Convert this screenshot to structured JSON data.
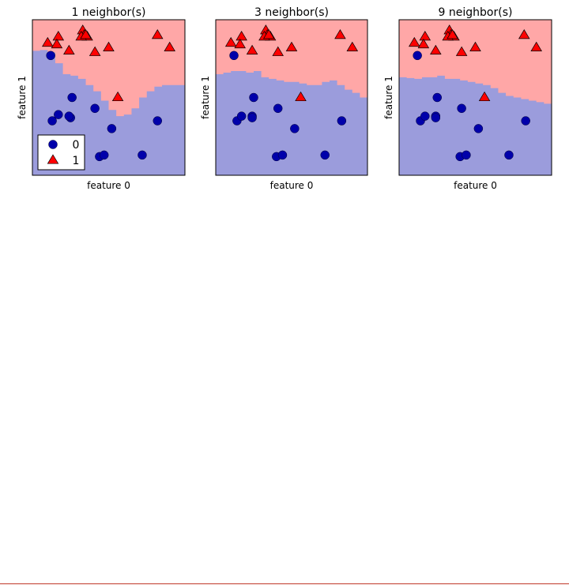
{
  "chart_data": [
    {
      "type": "scatter",
      "title": "1 neighbor(s)",
      "xlabel": "feature 0",
      "ylabel": "feature 1",
      "xlim": [
        0,
        100
      ],
      "ylim": [
        0,
        100
      ],
      "xticks": [],
      "yticks": [],
      "boundary": {
        "x": [
          0,
          5,
          10,
          15,
          20,
          25,
          30,
          35,
          40,
          45,
          50,
          55,
          60,
          65,
          70,
          75,
          80,
          85,
          90,
          95,
          100
        ],
        "y": [
          80,
          80.5,
          79,
          72,
          65,
          64,
          62,
          58,
          54,
          48,
          42,
          38,
          39,
          43,
          50,
          54,
          57,
          58,
          58,
          58,
          58
        ],
        "below_color": "#9b9cdc",
        "above_color": "#ffa7a7"
      },
      "series": [
        {
          "name": "0",
          "marker": "circle",
          "color": "#0000aa",
          "x": [
            12,
            26,
            25,
            13,
            17,
            24,
            41,
            52,
            44,
            47,
            82,
            72
          ],
          "y": [
            77,
            50,
            37,
            35,
            39,
            38,
            43,
            30,
            12,
            13,
            35,
            13
          ]
        },
        {
          "name": "1",
          "marker": "triangle",
          "color": "#ff0000",
          "x": [
            10,
            17,
            16,
            33,
            34,
            36,
            32,
            35,
            24,
            41,
            50,
            82,
            90,
            56
          ],
          "y": [
            85,
            89,
            84,
            93,
            90,
            89,
            89,
            90,
            80,
            79,
            82,
            90,
            82,
            50
          ]
        }
      ],
      "legend": {
        "position": "bottom-left",
        "entries": [
          "0",
          "1"
        ]
      }
    },
    {
      "type": "scatter",
      "title": "3 neighbor(s)",
      "xlabel": "feature 0",
      "ylabel": "feature 1",
      "xlim": [
        0,
        100
      ],
      "ylim": [
        0,
        100
      ],
      "xticks": [],
      "yticks": [],
      "boundary": {
        "x": [
          0,
          5,
          10,
          15,
          20,
          25,
          30,
          35,
          40,
          45,
          50,
          55,
          60,
          65,
          70,
          75,
          80,
          85,
          90,
          95,
          100
        ],
        "y": [
          65,
          66,
          67,
          67,
          66,
          67,
          63,
          62,
          61,
          60,
          60,
          59,
          58,
          58,
          60,
          61,
          58,
          55,
          53,
          50,
          47
        ],
        "below_color": "#9b9cdc",
        "above_color": "#ffa7a7"
      },
      "series": [
        {
          "name": "0",
          "marker": "circle",
          "color": "#0000aa",
          "x": [
            12,
            25,
            24,
            14,
            17,
            24,
            41,
            52,
            40,
            44,
            83,
            72
          ],
          "y": [
            77,
            50,
            38,
            35,
            38,
            37,
            43,
            30,
            12,
            13,
            35,
            13
          ]
        },
        {
          "name": "1",
          "marker": "triangle",
          "color": "#ff0000",
          "x": [
            10,
            17,
            16,
            33,
            34,
            36,
            32,
            35,
            24,
            41,
            50,
            82,
            90,
            56
          ],
          "y": [
            85,
            89,
            84,
            93,
            90,
            89,
            89,
            90,
            80,
            79,
            82,
            90,
            82,
            50
          ]
        }
      ]
    },
    {
      "type": "scatter",
      "title": "9 neighbor(s)",
      "xlabel": "feature 0",
      "ylabel": "feature 1",
      "xlim": [
        0,
        100
      ],
      "ylim": [
        0,
        100
      ],
      "xticks": [],
      "yticks": [],
      "boundary": {
        "x": [
          0,
          5,
          10,
          15,
          20,
          25,
          30,
          35,
          40,
          45,
          50,
          55,
          60,
          65,
          70,
          75,
          80,
          85,
          90,
          95,
          100
        ],
        "y": [
          63,
          62.5,
          62,
          63,
          63,
          64,
          62,
          62,
          61,
          60,
          59,
          58,
          56,
          53,
          51,
          50,
          49,
          48,
          47,
          46,
          45
        ],
        "below_color": "#9b9cdc",
        "above_color": "#ffa7a7"
      },
      "series": [
        {
          "name": "0",
          "marker": "circle",
          "color": "#0000aa",
          "x": [
            12,
            25,
            24,
            14,
            17,
            24,
            41,
            52,
            40,
            44,
            83,
            72
          ],
          "y": [
            77,
            50,
            38,
            35,
            38,
            37,
            43,
            30,
            12,
            13,
            35,
            13
          ]
        },
        {
          "name": "1",
          "marker": "triangle",
          "color": "#ff0000",
          "x": [
            10,
            17,
            16,
            33,
            34,
            36,
            32,
            35,
            24,
            41,
            50,
            82,
            90,
            56
          ],
          "y": [
            85,
            89,
            84,
            93,
            90,
            89,
            89,
            90,
            80,
            79,
            82,
            90,
            82,
            50
          ]
        }
      ]
    }
  ]
}
